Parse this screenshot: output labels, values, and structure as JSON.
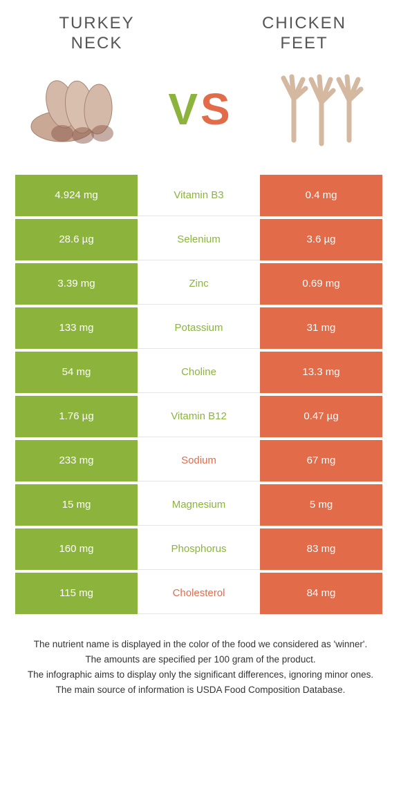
{
  "colors": {
    "left": "#8cb43c",
    "right": "#e26b4a",
    "title": "#555555",
    "footer": "#333333"
  },
  "header": {
    "left_title_line1": "TURKEY",
    "left_title_line2": "NECK",
    "right_title_line1": "CHICKEN",
    "right_title_line2": "FEET",
    "vs_v": "V",
    "vs_s": "S"
  },
  "rows": [
    {
      "left": "4.924 mg",
      "label": "Vitamin B3",
      "right": "0.4 mg",
      "winner": "left"
    },
    {
      "left": "28.6 µg",
      "label": "Selenium",
      "right": "3.6 µg",
      "winner": "left"
    },
    {
      "left": "3.39 mg",
      "label": "Zinc",
      "right": "0.69 mg",
      "winner": "left"
    },
    {
      "left": "133 mg",
      "label": "Potassium",
      "right": "31 mg",
      "winner": "left"
    },
    {
      "left": "54 mg",
      "label": "Choline",
      "right": "13.3 mg",
      "winner": "left"
    },
    {
      "left": "1.76 µg",
      "label": "Vitamin B12",
      "right": "0.47 µg",
      "winner": "left"
    },
    {
      "left": "233 mg",
      "label": "Sodium",
      "right": "67 mg",
      "winner": "right"
    },
    {
      "left": "15 mg",
      "label": "Magnesium",
      "right": "5 mg",
      "winner": "left"
    },
    {
      "left": "160 mg",
      "label": "Phosphorus",
      "right": "83 mg",
      "winner": "left"
    },
    {
      "left": "115 mg",
      "label": "Cholesterol",
      "right": "84 mg",
      "winner": "right"
    }
  ],
  "footer": {
    "line1": "The nutrient name is displayed in the color of the food we considered as 'winner'.",
    "line2": "The amounts are specified per 100 gram of the product.",
    "line3": "The infographic aims to display only the significant differences, ignoring minor ones.",
    "line4": "The main source of information is USDA Food Composition Database."
  }
}
